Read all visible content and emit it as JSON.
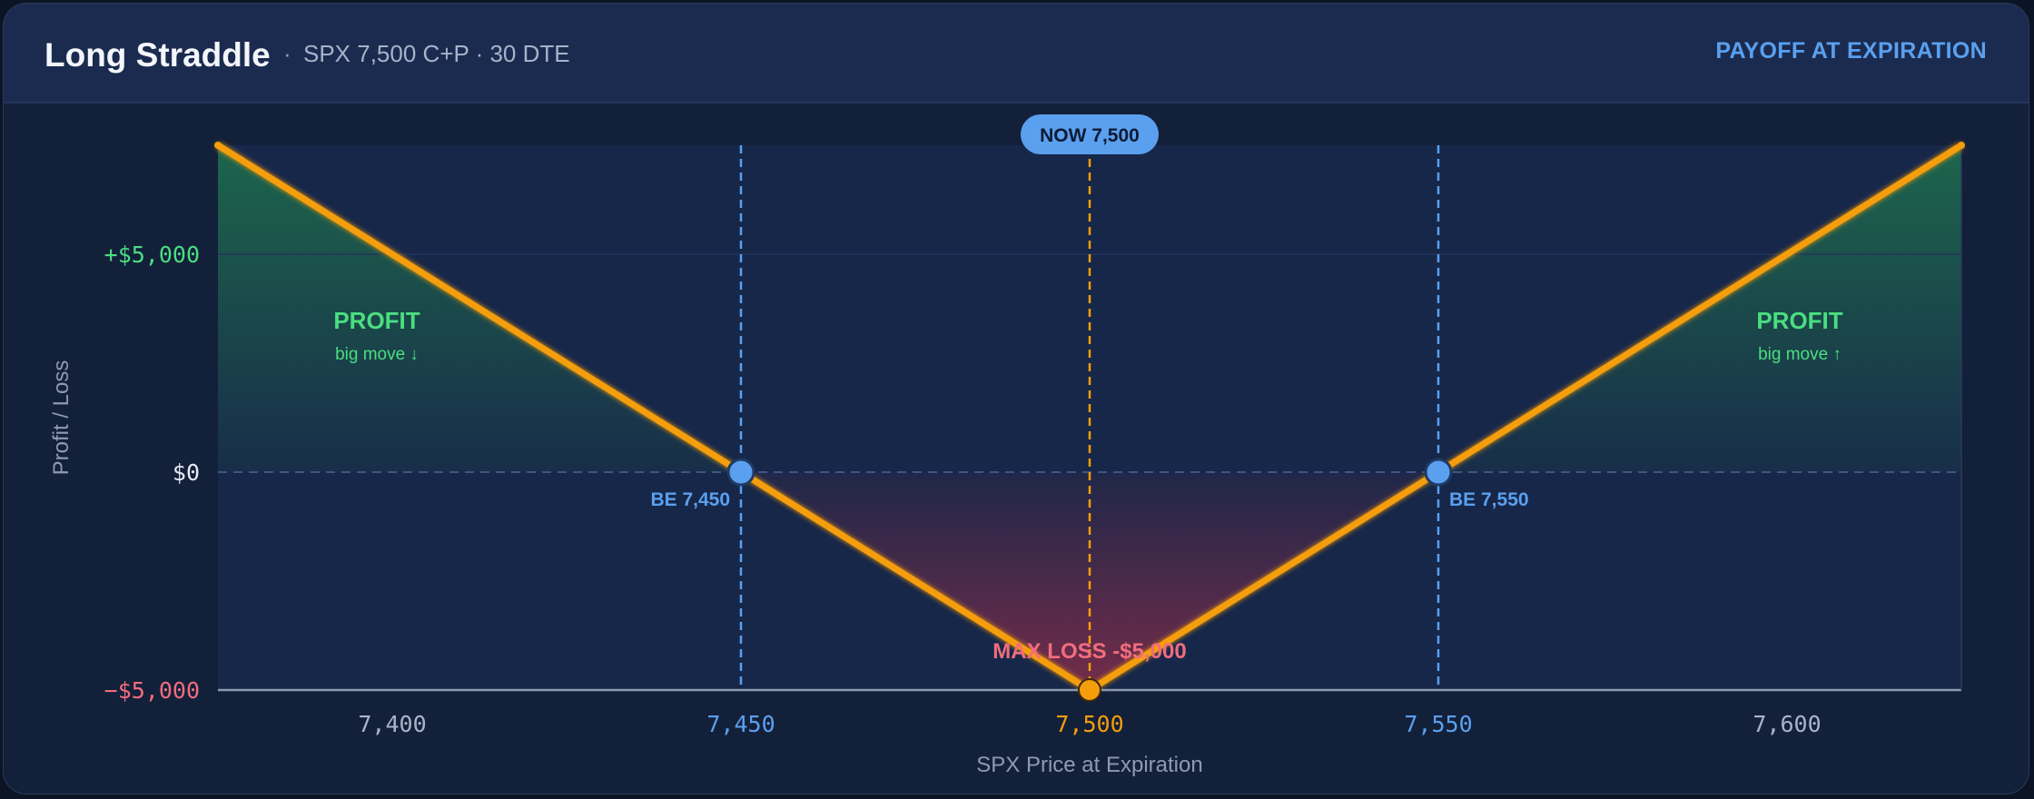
{
  "header": {
    "title": "Long Straddle",
    "separator": "·",
    "subtitle": "SPX 7,500 C+P · 30 DTE",
    "badge": "PAYOFF AT EXPIRATION"
  },
  "chart_data": {
    "type": "line",
    "title": "Long Straddle",
    "xlabel": "SPX Price at Expiration",
    "ylabel": "Profit / Loss",
    "xlim": [
      7375,
      7625
    ],
    "ylim": [
      -5000,
      7500
    ],
    "x_ticks": [
      7400,
      7450,
      7500,
      7550,
      7600
    ],
    "x_tick_labels": [
      "7,400",
      "7,450",
      "7,500",
      "7,550",
      "7,600"
    ],
    "y_ticks": [
      5000,
      0,
      -5000
    ],
    "y_tick_labels": [
      "+$5,000",
      "$0",
      "−$5,000"
    ],
    "grid": true,
    "series": [
      {
        "x": [
          7375,
          7450,
          7500,
          7550,
          7625
        ],
        "y": [
          7500,
          0,
          -5000,
          0,
          7500
        ]
      }
    ],
    "markers": [
      {
        "kind": "breakeven",
        "x": 7450,
        "y": 0,
        "label": "BE 7,450"
      },
      {
        "kind": "breakeven",
        "x": 7550,
        "y": 0,
        "label": "BE 7,550"
      },
      {
        "kind": "spot",
        "x": 7500,
        "label": "NOW 7,500"
      }
    ],
    "annotations": {
      "profit_left": {
        "title": "PROFIT",
        "sub": "big move ↓"
      },
      "profit_right": {
        "title": "PROFIT",
        "sub": "big move ↑"
      },
      "max_loss": "MAX LOSS  -$5,000"
    },
    "colors": {
      "payoff_line": "#f59e0b",
      "breakeven": "#5aa0ef",
      "profit": "#4ade80",
      "loss": "#f26d7d",
      "spot": "#f59e0b",
      "profit_fill": "#1f7a4d",
      "loss_fill": "#c0304a"
    }
  }
}
